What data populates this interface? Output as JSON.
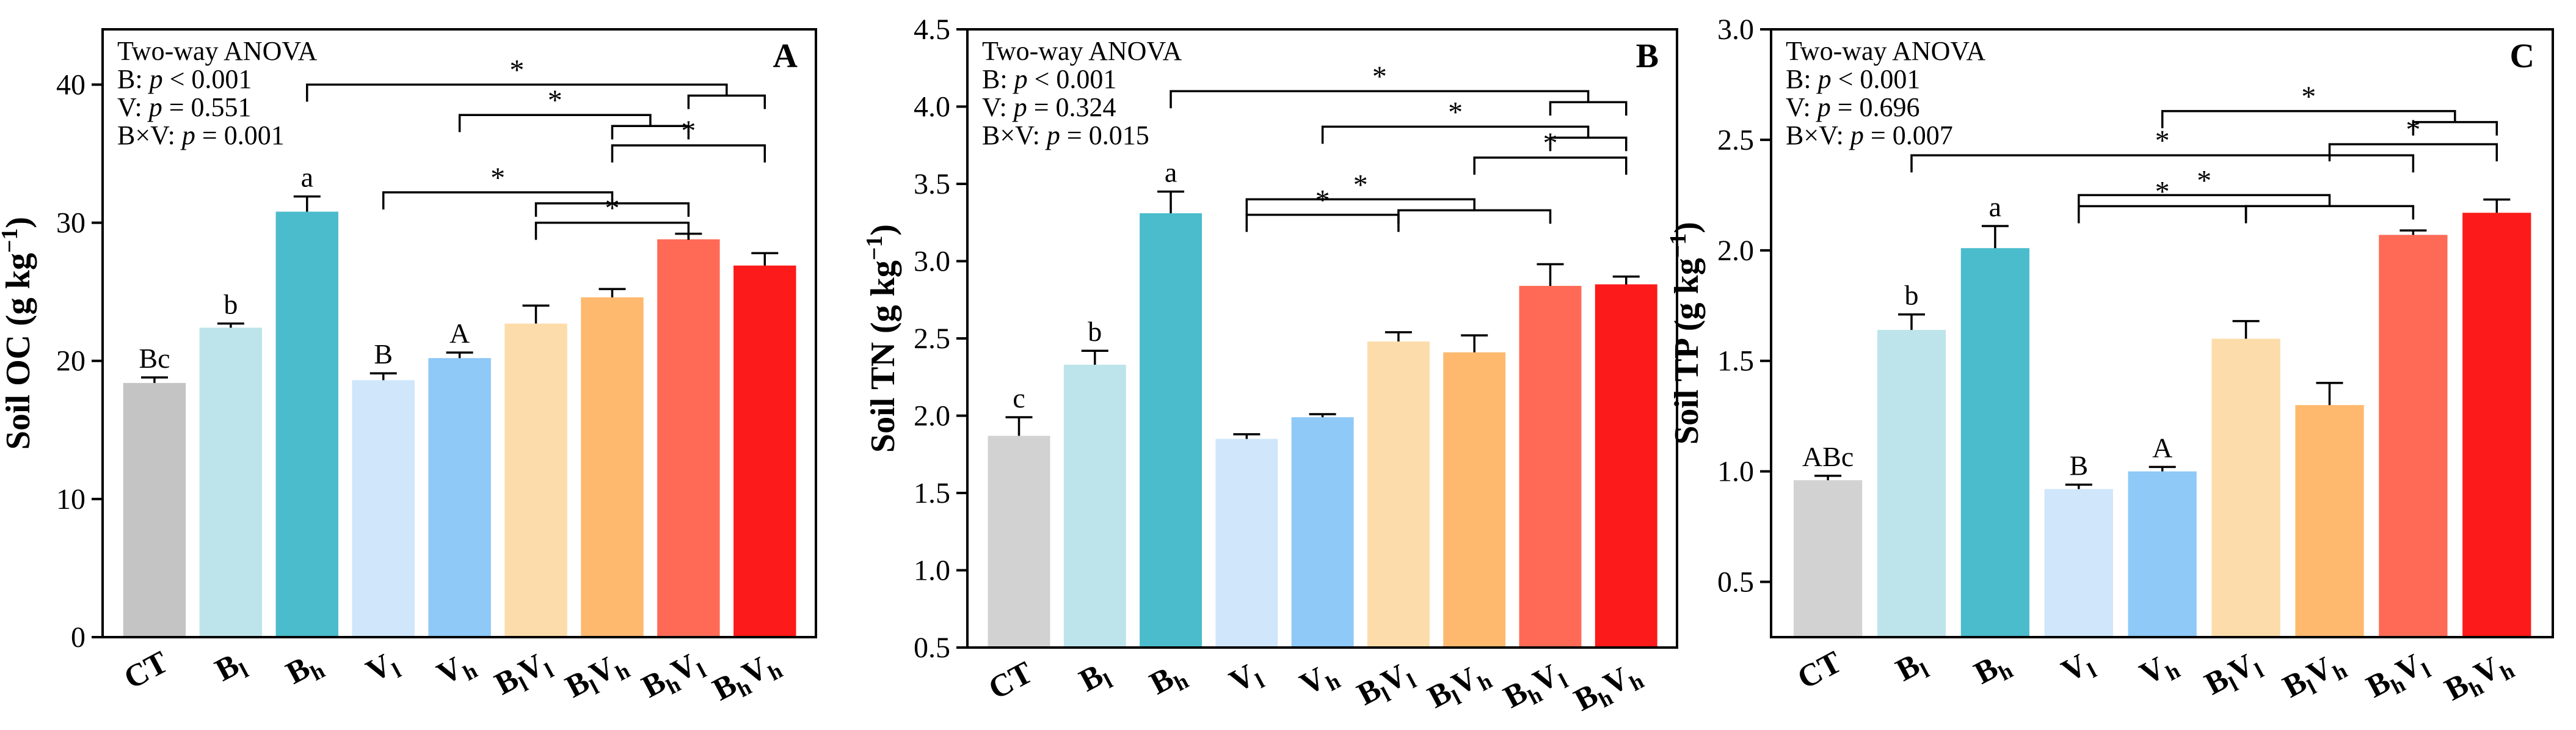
{
  "chart_data": [
    {
      "type": "bar",
      "panel_label": "A",
      "ylabel": "Soil OC (g kg",
      "ylabel_exp": "−1",
      "ylabel_close": ")",
      "ylim": [
        0,
        44
      ],
      "yticks": [
        0,
        10,
        20,
        30,
        40
      ],
      "ytick_labels": [
        "0",
        "10",
        "20",
        "30",
        "40"
      ],
      "categories": [
        {
          "main": "CT",
          "sub": "",
          "sub2": ""
        },
        {
          "main": "B",
          "sub": "l",
          "sub2": ""
        },
        {
          "main": "B",
          "sub": "h",
          "sub2": ""
        },
        {
          "main": "V",
          "sub": "l",
          "sub2": ""
        },
        {
          "main": "V",
          "sub": "h",
          "sub2": ""
        },
        {
          "main": "B",
          "sub": "l",
          "main2": "V",
          "sub2": "l"
        },
        {
          "main": "B",
          "sub": "l",
          "main2": "V",
          "sub2": "h"
        },
        {
          "main": "B",
          "sub": "h",
          "main2": "V",
          "sub2": "l"
        },
        {
          "main": "B",
          "sub": "h",
          "main2": "V",
          "sub2": "h"
        }
      ],
      "values": [
        18.4,
        22.4,
        30.8,
        18.6,
        20.2,
        22.7,
        24.6,
        28.8,
        26.9
      ],
      "errors": [
        0.4,
        0.3,
        1.1,
        0.5,
        0.4,
        1.3,
        0.6,
        0.4,
        0.9
      ],
      "colors": [
        "#c4c4c4",
        "#bde4ea",
        "#4bbccc",
        "#cfe6fb",
        "#8ec9f7",
        "#fcdcaa",
        "#feb96e",
        "#ff6a56",
        "#fd1a1a"
      ],
      "letters": [
        "Bc",
        "b",
        "a",
        "B",
        "A",
        "",
        "",
        "",
        ""
      ],
      "anova": {
        "title": "Two-way ANOVA",
        "lines": [
          {
            "prefix": "B: ",
            "stat": "p",
            "rest": " < 0.001"
          },
          {
            "prefix": "V: ",
            "stat": "p",
            "rest": " = 0.551"
          },
          {
            "prefix": "B×V: ",
            "stat": "p",
            "rest": " = 0.001"
          }
        ]
      },
      "comparisons": [
        {
          "from": [
            2
          ],
          "to": [
            7,
            8
          ],
          "level": 40.0,
          "label": "*"
        },
        {
          "from": [
            4
          ],
          "to": [
            6,
            7
          ],
          "level": 37.8,
          "label": "*"
        },
        {
          "from": [
            6
          ],
          "to": [
            8
          ],
          "level": 35.6,
          "label": "*"
        },
        {
          "from": [
            3
          ],
          "to": [
            5,
            7
          ],
          "level": 32.2,
          "label": "*"
        },
        {
          "from": [
            5
          ],
          "to": [
            7
          ],
          "level": 30.0,
          "label": "*"
        }
      ]
    },
    {
      "type": "bar",
      "panel_label": "B",
      "ylabel": "Soil TN (g kg",
      "ylabel_exp": "−1",
      "ylabel_close": ")",
      "ylim": [
        0.5,
        4.5
      ],
      "yticks": [
        0.5,
        1.0,
        1.5,
        2.0,
        2.5,
        3.0,
        3.5,
        4.0,
        4.5
      ],
      "ytick_labels": [
        "0.5",
        "1.0",
        "1.5",
        "2.0",
        "2.5",
        "3.0",
        "3.5",
        "4.0",
        "4.5"
      ],
      "categories": [
        {
          "main": "CT",
          "sub": "",
          "sub2": ""
        },
        {
          "main": "B",
          "sub": "l",
          "sub2": ""
        },
        {
          "main": "B",
          "sub": "h",
          "sub2": ""
        },
        {
          "main": "V",
          "sub": "l",
          "sub2": ""
        },
        {
          "main": "V",
          "sub": "h",
          "sub2": ""
        },
        {
          "main": "B",
          "sub": "l",
          "main2": "V",
          "sub2": "l"
        },
        {
          "main": "B",
          "sub": "l",
          "main2": "V",
          "sub2": "h"
        },
        {
          "main": "B",
          "sub": "h",
          "main2": "V",
          "sub2": "l"
        },
        {
          "main": "B",
          "sub": "h",
          "main2": "V",
          "sub2": "h"
        }
      ],
      "values": [
        1.87,
        2.33,
        3.31,
        1.85,
        1.99,
        2.48,
        2.41,
        2.84,
        2.85
      ],
      "errors": [
        0.12,
        0.09,
        0.14,
        0.03,
        0.02,
        0.06,
        0.11,
        0.14,
        0.05
      ],
      "colors": [
        "#d2d2d2",
        "#bde4ea",
        "#4bbccc",
        "#cfe6fb",
        "#8ec9f7",
        "#fcdcaa",
        "#feb96e",
        "#ff6a56",
        "#fd1a1a"
      ],
      "letters": [
        "c",
        "b",
        "a",
        "",
        "",
        "",
        "",
        "",
        ""
      ],
      "anova": {
        "title": "Two-way ANOVA",
        "lines": [
          {
            "prefix": "B: ",
            "stat": "p",
            "rest": " < 0.001"
          },
          {
            "prefix": "V: ",
            "stat": "p",
            "rest": " = 0.324"
          },
          {
            "prefix": "B×V: ",
            "stat": "p",
            "rest": " = 0.015"
          }
        ]
      },
      "comparisons": [
        {
          "from": [
            2
          ],
          "to": [
            7,
            8
          ],
          "level": 4.1,
          "label": "*"
        },
        {
          "from": [
            4
          ],
          "to": [
            7,
            8
          ],
          "level": 3.87,
          "label": "*"
        },
        {
          "from": [
            6
          ],
          "to": [
            8
          ],
          "level": 3.67,
          "label": "*"
        },
        {
          "from": [
            3
          ],
          "to": [
            5,
            7
          ],
          "level": 3.4,
          "label": "*"
        },
        {
          "from": [
            3
          ],
          "to": [
            5
          ],
          "level": 3.3,
          "label": "*"
        }
      ]
    },
    {
      "type": "bar",
      "panel_label": "C",
      "ylabel": "Soil TP (g kg",
      "ylabel_exp": "−1",
      "ylabel_close": ")",
      "ylim": [
        0.25,
        3.0
      ],
      "yticks": [
        0.5,
        1.0,
        1.5,
        2.0,
        2.5,
        3.0
      ],
      "ytick_labels": [
        "0.5",
        "1.0",
        "1.5",
        "2.0",
        "2.5",
        "3.0"
      ],
      "categories": [
        {
          "main": "CT",
          "sub": "",
          "sub2": ""
        },
        {
          "main": "B",
          "sub": "l",
          "sub2": ""
        },
        {
          "main": "B",
          "sub": "h",
          "sub2": ""
        },
        {
          "main": "V",
          "sub": "l",
          "sub2": ""
        },
        {
          "main": "V",
          "sub": "h",
          "sub2": ""
        },
        {
          "main": "B",
          "sub": "l",
          "main2": "V",
          "sub2": "l"
        },
        {
          "main": "B",
          "sub": "l",
          "main2": "V",
          "sub2": "h"
        },
        {
          "main": "B",
          "sub": "h",
          "main2": "V",
          "sub2": "l"
        },
        {
          "main": "B",
          "sub": "h",
          "main2": "V",
          "sub2": "h"
        }
      ],
      "values": [
        0.96,
        1.64,
        2.01,
        0.92,
        1.0,
        1.6,
        1.3,
        2.07,
        2.17
      ],
      "errors": [
        0.02,
        0.07,
        0.1,
        0.02,
        0.02,
        0.08,
        0.1,
        0.02,
        0.06
      ],
      "colors": [
        "#d2d2d2",
        "#bde4ea",
        "#4bbccc",
        "#cfe6fb",
        "#8ec9f7",
        "#fcdcaa",
        "#feb96e",
        "#ff6a56",
        "#fd1a1a"
      ],
      "letters": [
        "ABc",
        "b",
        "a",
        "B",
        "A",
        "",
        "",
        "",
        ""
      ],
      "anova": {
        "title": "Two-way ANOVA",
        "lines": [
          {
            "prefix": "B: ",
            "stat": "p",
            "rest": " < 0.001"
          },
          {
            "prefix": "V: ",
            "stat": "p",
            "rest": " = 0.696"
          },
          {
            "prefix": "B×V: ",
            "stat": "p",
            "rest": " = 0.007"
          }
        ]
      },
      "comparisons": [
        {
          "from": [
            4
          ],
          "to": [
            7,
            8
          ],
          "level": 2.63,
          "label": "*"
        },
        {
          "from": [
            6
          ],
          "to": [
            8
          ],
          "level": 2.48,
          "label": "*"
        },
        {
          "from": [
            1
          ],
          "to": [
            7
          ],
          "level": 2.43,
          "label": "*"
        },
        {
          "from": [
            3
          ],
          "to": [
            5,
            7
          ],
          "level": 2.25,
          "label": "*"
        },
        {
          "from": [
            3
          ],
          "to": [
            5
          ],
          "level": 2.2,
          "label": "*"
        }
      ]
    }
  ]
}
